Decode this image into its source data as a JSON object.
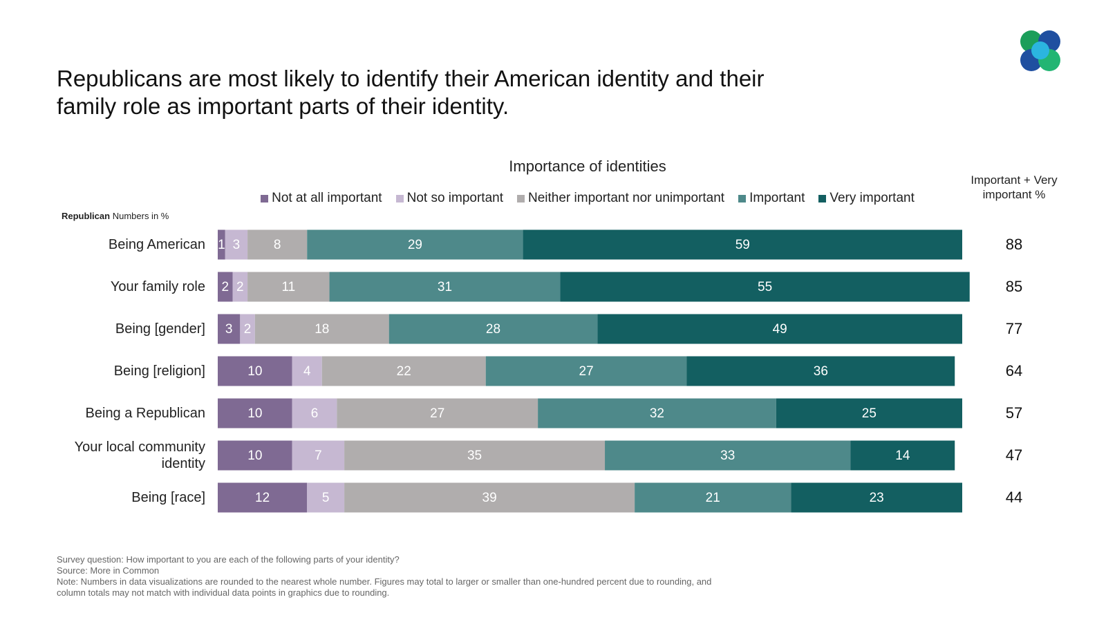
{
  "chart_data": {
    "type": "stacked_bar",
    "orientation": "horizontal",
    "title": "Republicans are most likely to identify their American identity and their family role as important parts of their identity.",
    "subtitle": "Importance of identities",
    "group_label": "Republican",
    "units_label": "Numbers in %",
    "categories": [
      "Being American",
      "Your family role",
      "Being [gender]",
      "Being [religion]",
      "Being a Republican",
      "Your local community identity",
      "Being [race]"
    ],
    "series": [
      {
        "name": "Not at all important",
        "color": "#7f6a93",
        "values": [
          1,
          2,
          3,
          10,
          10,
          10,
          12
        ]
      },
      {
        "name": "Not so important",
        "color": "#c6b8d2",
        "values": [
          3,
          2,
          2,
          4,
          6,
          7,
          5
        ]
      },
      {
        "name": "Neither important nor unimportant",
        "color": "#b0adad",
        "values": [
          8,
          11,
          18,
          22,
          27,
          35,
          39
        ]
      },
      {
        "name": "Important",
        "color": "#4e898a",
        "values": [
          29,
          31,
          28,
          27,
          32,
          33,
          21
        ]
      },
      {
        "name": "Very important",
        "color": "#135f61",
        "values": [
          59,
          55,
          49,
          36,
          25,
          14,
          23
        ]
      }
    ],
    "xlim": [
      0,
      100
    ],
    "legend_position": "top",
    "total_column": {
      "title": "Important + Very important %",
      "values": [
        88,
        85,
        77,
        64,
        57,
        47,
        44
      ]
    },
    "footnotes": [
      "Survey question: How important to you are each of the following parts of your identity?",
      "Source: More in Common",
      "Note: Numbers in data visualizations are rounded to the nearest whole number. Figures may total to larger or smaller than one-hundred percent due to rounding, and column totals may not match with individual data points in graphics due to rounding."
    ]
  }
}
